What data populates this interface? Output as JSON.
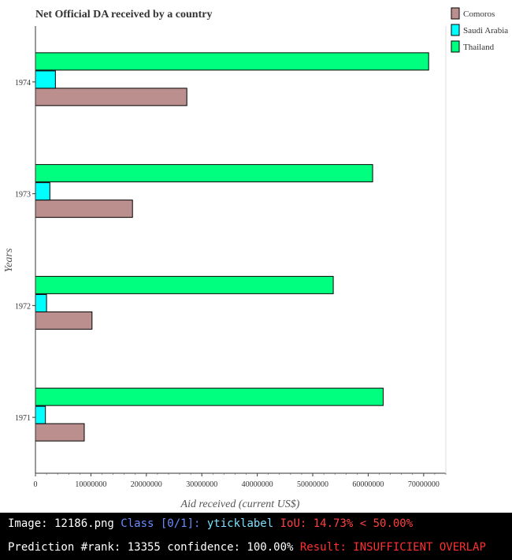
{
  "chart_data": {
    "type": "bar",
    "orientation": "horizontal",
    "title": "Net Official DA received by a country",
    "xlabel": "Aid received (current US$)",
    "ylabel": "Years",
    "categories": [
      "1971",
      "1972",
      "1973",
      "1974"
    ],
    "series": [
      {
        "name": "Comoros",
        "color": "#bc8f8f",
        "values": [
          8800000,
          10200000,
          17500000,
          27300000
        ]
      },
      {
        "name": "Saudi Arabia",
        "color": "#00ffff",
        "values": [
          1800000,
          2000000,
          2600000,
          3600000
        ]
      },
      {
        "name": "Thailand",
        "color": "#00ff7f",
        "values": [
          62700000,
          53700000,
          60800000,
          70900000
        ]
      }
    ],
    "xlim": [
      0,
      74000000
    ],
    "xticks": [
      "0",
      "10000000",
      "20000000",
      "30000000",
      "40000000",
      "50000000",
      "60000000",
      "70000000"
    ],
    "legend_position": "top-right",
    "grid": false
  },
  "status": {
    "line1_prefix": "Image: 12186.png ",
    "line1_class": "Class [0/1]: ",
    "line1_label": "yticklabel ",
    "line1_iou": "IoU: 14.73% < 50.00%",
    "line2_prefix": "Prediction #rank: 13355 confidence: 100.00% ",
    "line2_result": "Result: INSUFFICIENT OVERLAP",
    "colors": {
      "class": "#6a8cff",
      "label": "#7fe0ff",
      "iou": "#ff4040",
      "result": "#ff3030"
    }
  }
}
